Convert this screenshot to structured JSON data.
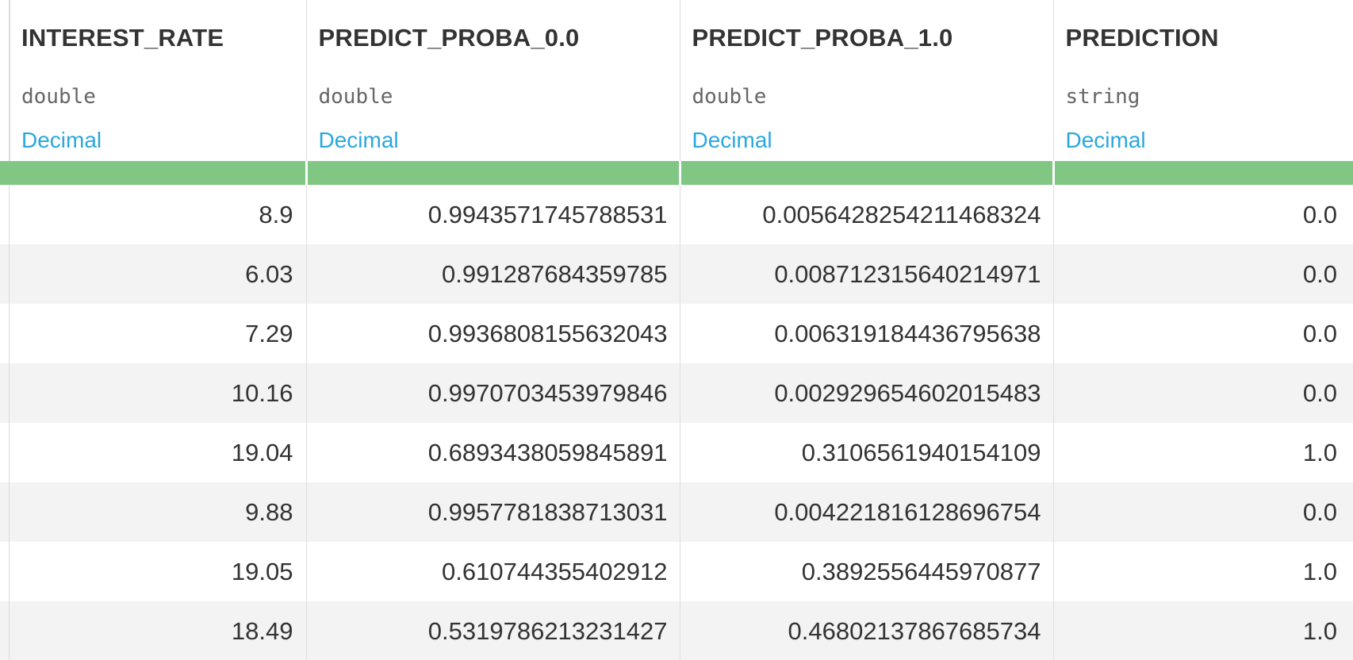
{
  "columns": [
    {
      "name": "INTEREST_RATE",
      "type": "double",
      "meaning": "Decimal"
    },
    {
      "name": "PREDICT_PROBA_0.0",
      "type": "double",
      "meaning": "Decimal"
    },
    {
      "name": "PREDICT_PROBA_1.0",
      "type": "double",
      "meaning": "Decimal"
    },
    {
      "name": "PREDICTION",
      "type": "string",
      "meaning": "Decimal"
    }
  ],
  "rows": [
    [
      "8.9",
      "0.9943571745788531",
      "0.005642825421146832​4",
      "0.0"
    ],
    [
      "6.03",
      "0.991287684359785",
      "0.00871231564021497​1",
      "0.0"
    ],
    [
      "7.29",
      "0.9936808155632043",
      "0.00631918443679563​8",
      "0.0"
    ],
    [
      "10.16",
      "0.9970703453979846",
      "0.00292965460201548​3",
      "0.0"
    ],
    [
      "19.04",
      "0.6893438059845891",
      "0.3106561940154109",
      "1.0"
    ],
    [
      "9.88",
      "0.9957781838713031",
      "0.00422181612869675​4",
      "0.0"
    ],
    [
      "19.05",
      "0.610744355402912",
      "0.3892556445970877",
      "1.0"
    ],
    [
      "18.49",
      "0.5319786213231427",
      "0.46802137867685734",
      "1.0"
    ]
  ]
}
